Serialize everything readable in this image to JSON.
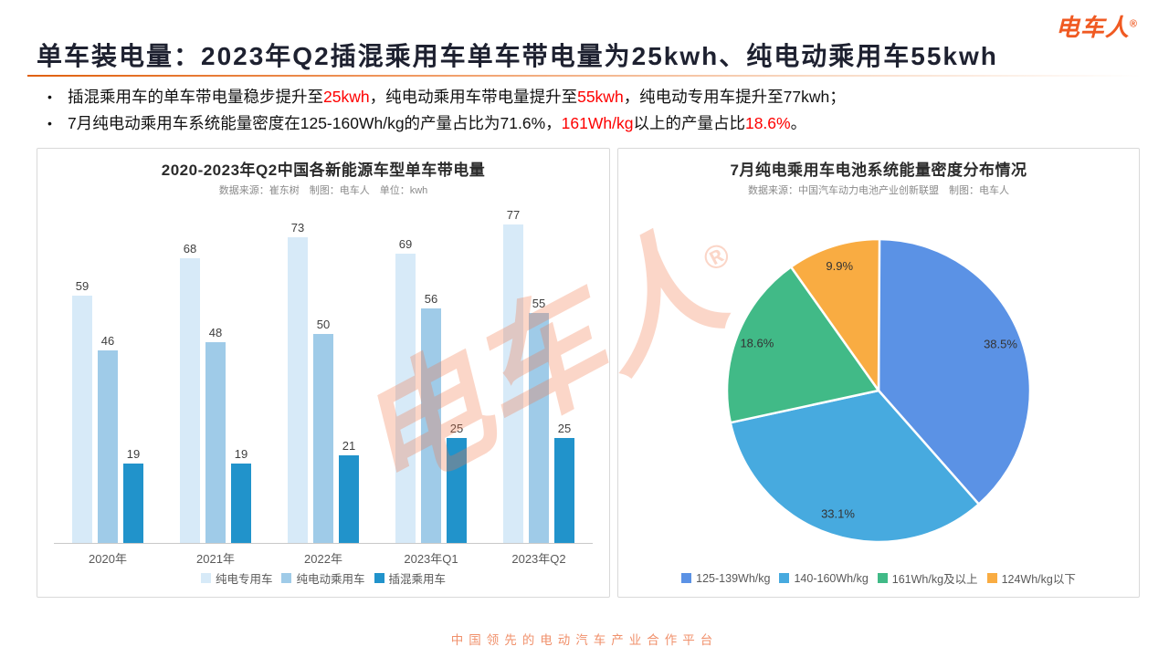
{
  "logo": {
    "text": "电车人",
    "registered": "®",
    "color": "#F05A22"
  },
  "header": {
    "title": "单车装电量：2023年Q2插混乘用车单车带电量为25kwh、纯电动乘用车55kwh"
  },
  "bullets": [
    {
      "segments": [
        {
          "text": "插混乘用车的单车带电量稳步提升至",
          "red": false
        },
        {
          "text": "25kwh",
          "red": true
        },
        {
          "text": "，纯电动乘用车带电量提升至",
          "red": false
        },
        {
          "text": "55kwh",
          "red": true
        },
        {
          "text": "，纯电动专用车提升至77kwh；",
          "red": false
        }
      ]
    },
    {
      "segments": [
        {
          "text": "7月纯电动乘用车系统能量密度在125-160Wh/kg的产量占比为71.6%，",
          "red": false
        },
        {
          "text": "161Wh/kg",
          "red": true
        },
        {
          "text": "以上的产量占比",
          "red": false
        },
        {
          "text": "18.6%",
          "red": true
        },
        {
          "text": "。",
          "red": false
        }
      ]
    }
  ],
  "watermark": {
    "text": "电车人",
    "registered": "®"
  },
  "footer": {
    "text": "中国领先的电动汽车产业合作平台"
  },
  "chart_data": [
    {
      "type": "bar",
      "title": "2020-2023年Q2中国各新能源车型单车带电量",
      "subtitle": "数据来源：崔东树　制图：电车人　单位：kwh",
      "categories": [
        "2020年",
        "2021年",
        "2022年",
        "2023年Q1",
        "2023年Q2"
      ],
      "series": [
        {
          "name": "纯电专用车",
          "color": "#D7EAF8",
          "values": [
            59,
            68,
            73,
            69,
            77
          ]
        },
        {
          "name": "纯电动乘用车",
          "color": "#9FCBE8",
          "values": [
            46,
            48,
            50,
            56,
            55
          ]
        },
        {
          "name": "插混乘用车",
          "color": "#2193CB",
          "values": [
            19,
            19,
            21,
            25,
            25
          ]
        }
      ],
      "ylim": [
        0,
        80
      ],
      "grid": false,
      "legend_position": "bottom",
      "value_labels": true
    },
    {
      "type": "pie",
      "title": "7月纯电乘用车电池系统能量密度分布情况",
      "subtitle": "数据来源：中国汽车动力电池产业创新联盟　制图：电车人",
      "slices": [
        {
          "label": "125-139Wh/kg",
          "value": 38.5,
          "color": "#5B92E5"
        },
        {
          "label": "140-160Wh/kg",
          "value": 33.1,
          "color": "#47AADF"
        },
        {
          "label": "161Wh/kg及以上",
          "value": 18.6,
          "color": "#41BA87"
        },
        {
          "label": "124Wh/kg以下",
          "value": 9.9,
          "color": "#F9AC42"
        }
      ],
      "start_angle_deg": 0,
      "direction": "clockwise",
      "legend_position": "bottom",
      "label_format": "percent"
    }
  ]
}
